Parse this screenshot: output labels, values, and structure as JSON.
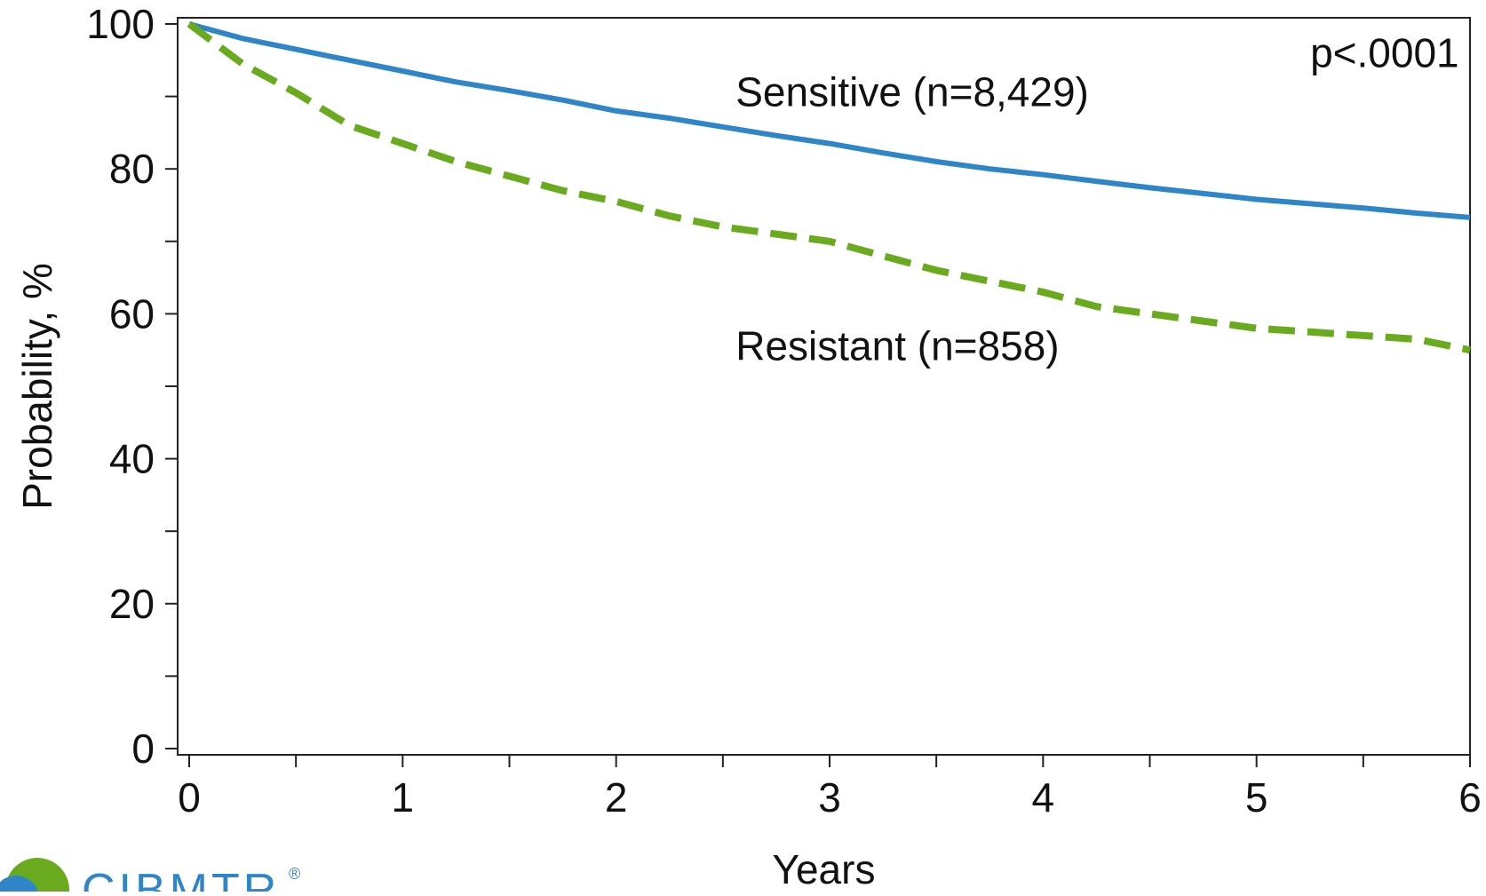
{
  "chart_data": {
    "type": "line",
    "title": "",
    "xlabel": "Years",
    "ylabel": "Probability, %",
    "xlim": [
      0,
      6
    ],
    "ylim": [
      0,
      100
    ],
    "x_ticks": [
      0,
      1,
      2,
      3,
      4,
      5,
      6
    ],
    "y_ticks": [
      0,
      20,
      40,
      60,
      80,
      100
    ],
    "grid": false,
    "legend": "none",
    "annotations": [
      {
        "text": "p<.0001",
        "x": 5.6,
        "y": 96
      }
    ],
    "series": [
      {
        "name": "Sensitive (n=8,429)",
        "color": "#2e86c8",
        "style": "solid",
        "label_at": [
          2.56,
          90.6
        ],
        "x": [
          0,
          0.25,
          0.5,
          0.75,
          1,
          1.25,
          1.5,
          1.75,
          2,
          2.25,
          2.5,
          2.75,
          3,
          3.25,
          3.5,
          3.75,
          4,
          4.25,
          4.5,
          4.75,
          5,
          5.25,
          5.5,
          5.75,
          6
        ],
        "values": [
          100,
          98,
          96.5,
          95,
          93.5,
          92,
          90.8,
          89.5,
          88,
          87,
          85.8,
          84.6,
          83.5,
          82.2,
          81,
          80,
          79.2,
          78.3,
          77.4,
          76.6,
          75.8,
          75.2,
          74.6,
          73.9,
          73.3
        ]
      },
      {
        "name": "Resistant (n=858)",
        "color": "#6aaa1f",
        "style": "dashed",
        "label_at": [
          2.56,
          55.6
        ],
        "x": [
          0,
          0.25,
          0.5,
          0.75,
          1,
          1.25,
          1.5,
          1.75,
          2,
          2.25,
          2.5,
          2.75,
          3,
          3.25,
          3.5,
          3.75,
          4,
          4.25,
          4.5,
          4.75,
          5,
          5.25,
          5.5,
          5.75,
          6
        ],
        "values": [
          100,
          94.5,
          90.5,
          86,
          83.5,
          81,
          79,
          77,
          75.5,
          73.5,
          72,
          71,
          70,
          68,
          66,
          64.5,
          63,
          61,
          60,
          59,
          58,
          57.5,
          57,
          56.5,
          55
        ]
      }
    ]
  },
  "logo": {
    "text": "CIBMTR",
    "mark": "®",
    "colors": [
      "#6aaa1f",
      "#2e86c8"
    ]
  }
}
